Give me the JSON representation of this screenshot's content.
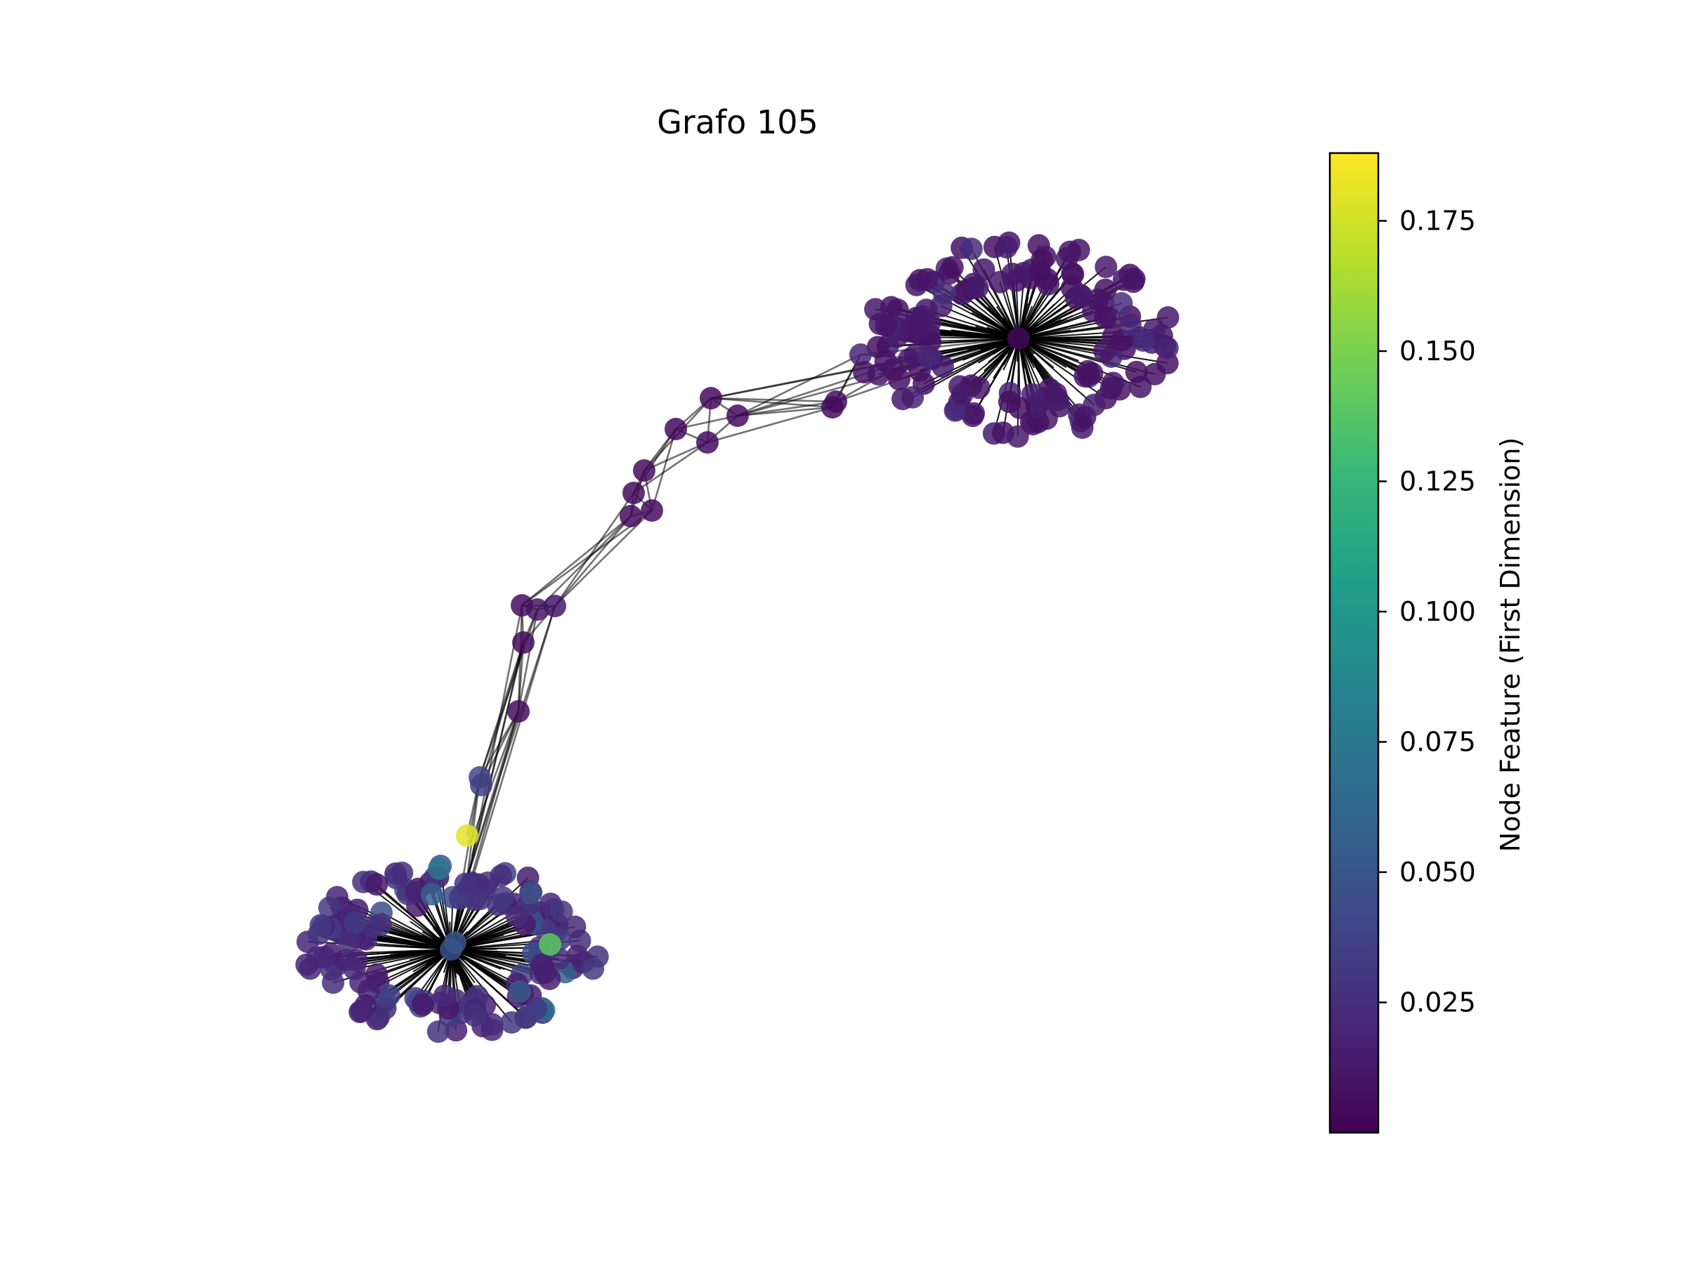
{
  "title": "Grafo 105",
  "colorbar": {
    "label": "Node Feature (First Dimension)",
    "min": 0.0,
    "max": 0.188,
    "ticks": [
      0.025,
      0.05,
      0.075,
      0.1,
      0.125,
      0.15,
      0.175
    ],
    "tick_labels": [
      "0.025",
      "0.050",
      "0.075",
      "0.100",
      "0.125",
      "0.150",
      "0.175"
    ],
    "colormap": "viridis",
    "colormap_stops": [
      "#440154",
      "#482878",
      "#3e4989",
      "#31688e",
      "#26828e",
      "#1f9e89",
      "#35b779",
      "#6ece58",
      "#b5de2b",
      "#fde725"
    ]
  },
  "graph": {
    "edge_color": "#000000",
    "clusters": [
      {
        "id": "cluster-top-right",
        "hub_feature": 0.004
      },
      {
        "id": "cluster-bottom-left",
        "hub_feature": 0.045
      }
    ],
    "highlighted_nodes": [
      {
        "id": "bridge-yellow",
        "feature": 0.18
      },
      {
        "id": "bottom-green",
        "feature": 0.14
      }
    ]
  }
}
